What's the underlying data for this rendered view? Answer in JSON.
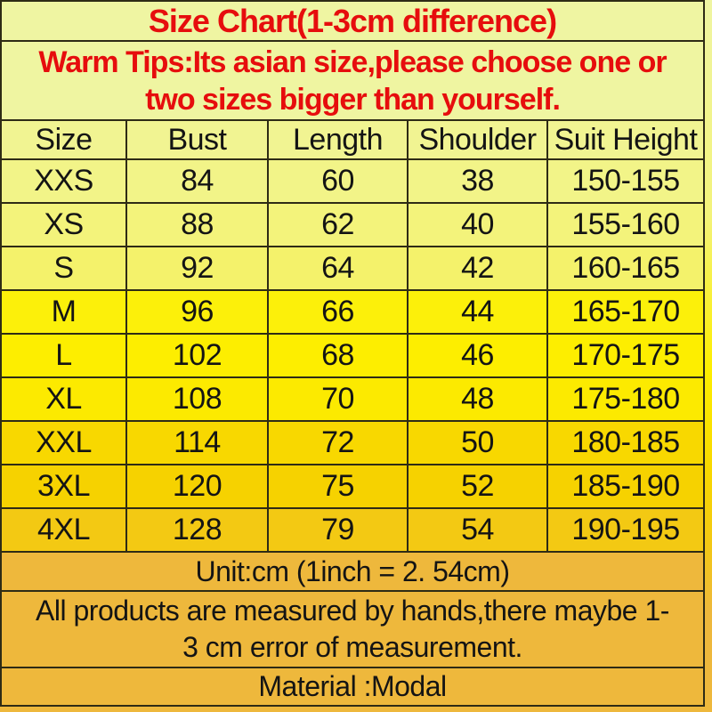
{
  "title": "Size Chart(1-3cm difference)",
  "warm_tips": {
    "lines": [
      "Warm Tips:Its asian size,please choose one or",
      "two sizes bigger than yourself."
    ]
  },
  "table": {
    "headers": [
      "Size",
      "Bust",
      "Length",
      "Shoulder",
      "Suit Height"
    ],
    "rows": [
      [
        "XXS",
        "84",
        "60",
        "38",
        "150-155"
      ],
      [
        "XS",
        "88",
        "62",
        "40",
        "155-160"
      ],
      [
        "S",
        "92",
        "64",
        "42",
        "160-165"
      ],
      [
        "M",
        "96",
        "66",
        "44",
        "165-170"
      ],
      [
        "L",
        "102",
        "68",
        "46",
        "170-175"
      ],
      [
        "XL",
        "108",
        "70",
        "48",
        "175-180"
      ],
      [
        "XXL",
        "114",
        "72",
        "50",
        "180-185"
      ],
      [
        "3XL",
        "120",
        "75",
        "52",
        "185-190"
      ],
      [
        "4XL",
        "128",
        "79",
        "54",
        "190-195"
      ]
    ]
  },
  "footer": {
    "unit_note": "Unit:cm (1inch = 2. 54cm)",
    "measure_note_lines": [
      "All products are measured by hands,there maybe 1-",
      "3 cm error of measurement."
    ],
    "material_note": "Material :Modal"
  },
  "colors": {
    "red_text": "#e60d0d",
    "black_text": "#141414",
    "border": "#2e2b15",
    "band_title": "#eff5a2",
    "band_tips": "#eff5a1",
    "band_header": "#f1f492",
    "row_colors": [
      "#f2f488",
      "#f3f37b",
      "#f4f26b",
      "#fcf00a",
      "#fdee00",
      "#fcea00",
      "#f8d800",
      "#f6d200",
      "#f3c913"
    ],
    "band_bottom": "#eeb83c"
  }
}
